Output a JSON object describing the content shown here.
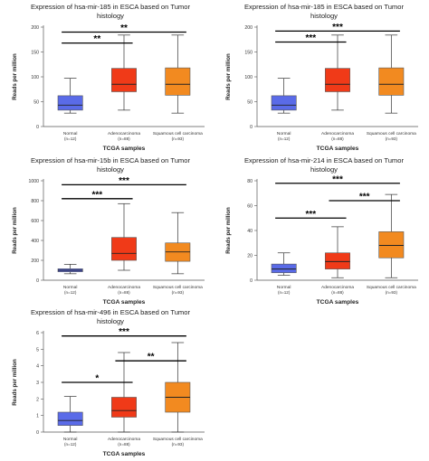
{
  "chart_data": [
    {
      "type": "boxplot",
      "title_lines": [
        "Expression of hsa-mir-185 in ESCA based on Tumor",
        "histology"
      ],
      "xlabel": "TCGA samples",
      "ylabel": "Reads per million",
      "ylim": [
        0,
        200
      ],
      "yticks": [
        0,
        50,
        100,
        150,
        200
      ],
      "categories": [
        {
          "name": "Normal",
          "n": "(n=12)",
          "color": "#5A6BE8",
          "whisker_low": 27,
          "q1": 33,
          "median": 43,
          "q3": 62,
          "whisker_high": 97
        },
        {
          "name": "Adenocarcinoma",
          "n": "(n=88)",
          "color": "#F03A18",
          "whisker_low": 33,
          "q1": 70,
          "median": 85,
          "q3": 117,
          "whisker_high": 184
        },
        {
          "name": "Squamous cell carcinoma",
          "n": "(n=93)",
          "color": "#F28A20",
          "whisker_low": 27,
          "q1": 63,
          "median": 85,
          "q3": 118,
          "whisker_high": 184
        }
      ],
      "significance": [
        {
          "from": 0,
          "to": 1,
          "label": "**",
          "y": 168
        },
        {
          "from": 0,
          "to": 2,
          "label": "**",
          "y": 190
        }
      ]
    },
    {
      "type": "boxplot",
      "title_lines": [
        "Expression of hsa-mir-185 in ESCA based on Tumor",
        "histology"
      ],
      "xlabel": "TCGA samples",
      "ylabel": "Reads per million",
      "ylim": [
        0,
        200
      ],
      "yticks": [
        0,
        50,
        100,
        150,
        200
      ],
      "categories": [
        {
          "name": "Normal",
          "n": "(n=12)",
          "color": "#5A6BE8",
          "whisker_low": 27,
          "q1": 33,
          "median": 43,
          "q3": 62,
          "whisker_high": 97
        },
        {
          "name": "Adenocarcinoma",
          "n": "(n=88)",
          "color": "#F03A18",
          "whisker_low": 33,
          "q1": 70,
          "median": 85,
          "q3": 117,
          "whisker_high": 184
        },
        {
          "name": "Squamous cell carcinoma",
          "n": "(n=93)",
          "color": "#F28A20",
          "whisker_low": 27,
          "q1": 63,
          "median": 85,
          "q3": 118,
          "whisker_high": 184
        }
      ],
      "significance": [
        {
          "from": 0,
          "to": 1,
          "label": "***",
          "y": 170
        },
        {
          "from": 0,
          "to": 2,
          "label": "***",
          "y": 192
        }
      ]
    },
    {
      "type": "boxplot",
      "title_lines": [
        "Expression of hsa-mir-15b in ESCA based on Tumor",
        "histology"
      ],
      "xlabel": "TCGA samples",
      "ylabel": "Reads per million",
      "ylim": [
        0,
        1000
      ],
      "yticks": [
        0,
        200,
        400,
        600,
        800,
        1000
      ],
      "categories": [
        {
          "name": "Normal",
          "n": "(n=12)",
          "color": "#5A6BE8",
          "whisker_low": 65,
          "q1": 85,
          "median": 100,
          "q3": 115,
          "whisker_high": 160
        },
        {
          "name": "Adenocarcinoma",
          "n": "(n=88)",
          "color": "#F03A18",
          "whisker_low": 100,
          "q1": 200,
          "median": 270,
          "q3": 430,
          "whisker_high": 770
        },
        {
          "name": "Squamous cell carcinoma",
          "n": "(n=93)",
          "color": "#F28A20",
          "whisker_low": 65,
          "q1": 190,
          "median": 285,
          "q3": 375,
          "whisker_high": 680
        }
      ],
      "significance": [
        {
          "from": 0,
          "to": 1,
          "label": "***",
          "y": 820
        },
        {
          "from": 0,
          "to": 2,
          "label": "***",
          "y": 960
        }
      ]
    },
    {
      "type": "boxplot",
      "title_lines": [
        "Expression of hsa-mir-214 in ESCA based on Tumor",
        "histology"
      ],
      "xlabel": "TCGA samples",
      "ylabel": "Reads per million",
      "ylim": [
        0,
        80
      ],
      "yticks": [
        0,
        20,
        40,
        60,
        80
      ],
      "categories": [
        {
          "name": "Normal",
          "n": "(n=12)",
          "color": "#5A6BE8",
          "whisker_low": 4,
          "q1": 6,
          "median": 9,
          "q3": 13,
          "whisker_high": 22
        },
        {
          "name": "Adenocarcinoma",
          "n": "(n=88)",
          "color": "#F03A18",
          "whisker_low": 2,
          "q1": 9,
          "median": 15,
          "q3": 22,
          "whisker_high": 43
        },
        {
          "name": "Squamous cell carcinoma",
          "n": "(n=93)",
          "color": "#F28A20",
          "whisker_low": 2,
          "q1": 18,
          "median": 28,
          "q3": 39,
          "whisker_high": 69
        }
      ],
      "significance": [
        {
          "from": 0,
          "to": 1,
          "label": "***",
          "y": 50
        },
        {
          "from": 1,
          "to": 2,
          "label": "***",
          "y": 64
        },
        {
          "from": 0,
          "to": 2,
          "label": "***",
          "y": 78
        }
      ]
    },
    {
      "type": "boxplot",
      "title_lines": [
        "Expression of hsa-mir-496 in ESCA based on Tumor",
        "histology"
      ],
      "xlabel": "TCGA samples",
      "ylabel": "Reads per million",
      "ylim": [
        0,
        6
      ],
      "yticks": [
        0,
        1,
        2,
        3,
        4,
        5,
        6
      ],
      "categories": [
        {
          "name": "Normal",
          "n": "(n=12)",
          "color": "#5A6BE8",
          "whisker_low": 0.0,
          "q1": 0.4,
          "median": 0.7,
          "q3": 1.2,
          "whisker_high": 2.15
        },
        {
          "name": "Adenocarcinoma",
          "n": "(n=88)",
          "color": "#F03A18",
          "whisker_low": 0.0,
          "q1": 0.9,
          "median": 1.3,
          "q3": 2.1,
          "whisker_high": 4.8
        },
        {
          "name": "Squamous cell carcinoma",
          "n": "(n=93)",
          "color": "#F28A20",
          "whisker_low": 0.0,
          "q1": 1.2,
          "median": 2.1,
          "q3": 3.0,
          "whisker_high": 5.4
        }
      ],
      "significance": [
        {
          "from": 0,
          "to": 1,
          "label": "*",
          "y": 3.0
        },
        {
          "from": 1,
          "to": 2,
          "label": "**",
          "y": 4.3
        },
        {
          "from": 0,
          "to": 2,
          "label": "***",
          "y": 5.8
        }
      ]
    }
  ]
}
